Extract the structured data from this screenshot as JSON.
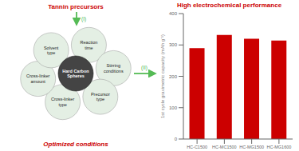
{
  "chart_data": {
    "type": "bar",
    "title": "High electrochemical performance",
    "categories": [
      "HC-C1500",
      "HC-MC1500",
      "HC-MG1500",
      "HC-MG1600"
    ],
    "values": [
      290,
      332,
      320,
      314
    ],
    "color": "#cc0000",
    "ylabel": "1st cycle gravimetric capacity (mAh g⁻¹)",
    "ylim": [
      0,
      400
    ],
    "yticks": [
      0,
      100,
      200,
      300,
      400
    ],
    "grid": false,
    "annotations": [
      "Tannin precursors",
      "Reaction\ntime",
      "Stirring\nconditions",
      "Precursor\ntype",
      "Cross-linker\ntype",
      "Cross-linker\namount",
      "Solvent\ntype",
      "Hard Carbon\nSpheres",
      "(I)",
      "(II)",
      "Optimized conditions"
    ]
  }
}
